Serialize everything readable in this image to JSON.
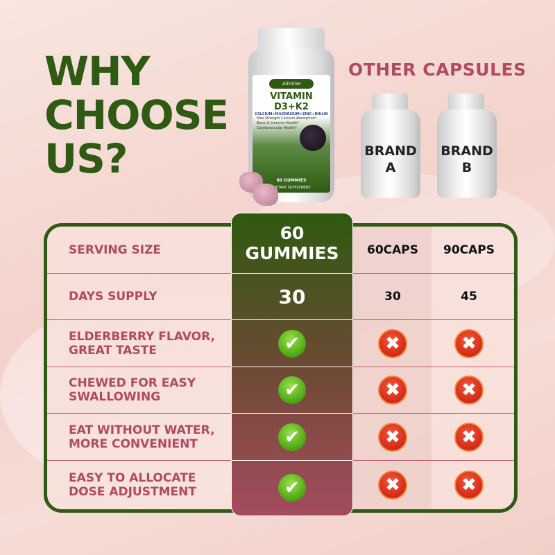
{
  "heading": {
    "line1": "WHY",
    "line2": "CHOOSE",
    "line3": "US?"
  },
  "other_heading": "OTHER CAPSULES",
  "product": {
    "brand": "Allmine",
    "name": "VITAMIN D3+K2",
    "subtitle": "CALCIUM+MAGNESIUM+ZINC+INULIN",
    "bullets": [
      "Max Strength Calcium Absorption*",
      "Bone & Immune Health*",
      "Cardiovascular Health*"
    ],
    "count": "60 GUMMIES",
    "type": "DIETARY SUPPLEMENT"
  },
  "competitors": [
    {
      "label_line1": "BRAND",
      "label_line2": "A"
    },
    {
      "label_line1": "BRAND",
      "label_line2": "B"
    }
  ],
  "table": {
    "rows": [
      {
        "label": "SERVING SIZE",
        "ours": "60 GUMMIES",
        "brand_a": "60CAPS",
        "brand_b": "90CAPS"
      },
      {
        "label": "DAYS SUPPLY",
        "ours": "30",
        "brand_a": "30",
        "brand_b": "45"
      },
      {
        "label_line1": "ELDERBERRY FLAVOR,",
        "label_line2": "GREAT TASTE",
        "ours": "check",
        "brand_a": "cross",
        "brand_b": "cross"
      },
      {
        "label_line1": "CHEWED FOR EASY",
        "label_line2": "SWALLOWING",
        "ours": "check",
        "brand_a": "cross",
        "brand_b": "cross"
      },
      {
        "label_line1": "EAT WITHOUT WATER,",
        "label_line2": "MORE CONVENIENT",
        "ours": "check",
        "brand_a": "cross",
        "brand_b": "cross"
      },
      {
        "label_line1": "EASY TO ALLOCATE",
        "label_line2": "DOSE ADJUSTMENT",
        "ours": "check",
        "brand_a": "cross",
        "brand_b": "cross"
      }
    ],
    "ours_serving_line1": "60",
    "ours_serving_line2": "GUMMIES"
  },
  "icons": {
    "check": "check-circle-icon",
    "cross": "x-circle-icon"
  },
  "colors": {
    "green": "#2f5a14",
    "rose": "#b04a60",
    "check": "#4aa514",
    "cross": "#d42a18"
  }
}
